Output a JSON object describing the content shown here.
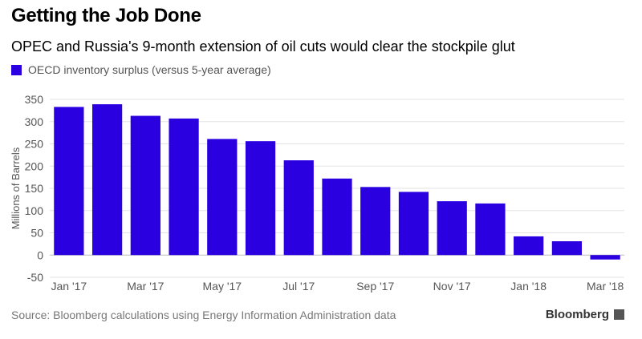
{
  "header": {
    "title": "Getting the Job Done",
    "subtitle": "OPEC and Russia's 9-month extension of oil cuts would clear the stockpile glut"
  },
  "legend": {
    "label": "OECD inventory surplus (versus 5-year average)",
    "color": "#2a00e0"
  },
  "footer": {
    "source": "Source: Bloomberg calculations using Energy Information Administration data",
    "brand": "Bloomberg",
    "brand_icon": "bloomberg-mark-icon"
  },
  "chart_data": {
    "type": "bar",
    "title": "Getting the Job Done",
    "xlabel": "",
    "ylabel": "Millions of Barrels",
    "ylim": [
      -50,
      350
    ],
    "yticks": [
      -50,
      0,
      50,
      100,
      150,
      200,
      250,
      300,
      350
    ],
    "grid": true,
    "legend_position": "top-left",
    "categories": [
      "Jan '17",
      "Feb '17",
      "Mar '17",
      "Apr '17",
      "May '17",
      "Jun '17",
      "Jul '17",
      "Aug '17",
      "Sep '17",
      "Oct '17",
      "Nov '17",
      "Dec '17",
      "Jan '18",
      "Feb '18",
      "Mar '18"
    ],
    "xtick_labels": [
      "Jan '17",
      "",
      "Mar '17",
      "",
      "May '17",
      "",
      "Jul '17",
      "",
      "Sep '17",
      "",
      "Nov '17",
      "",
      "Jan '18",
      "",
      "Mar '18"
    ],
    "series": [
      {
        "name": "OECD inventory surplus (versus 5-year average)",
        "values": [
          333,
          339,
          313,
          307,
          261,
          256,
          213,
          172,
          153,
          142,
          121,
          116,
          42,
          31,
          -10
        ],
        "color": "#2a00e0"
      }
    ]
  }
}
